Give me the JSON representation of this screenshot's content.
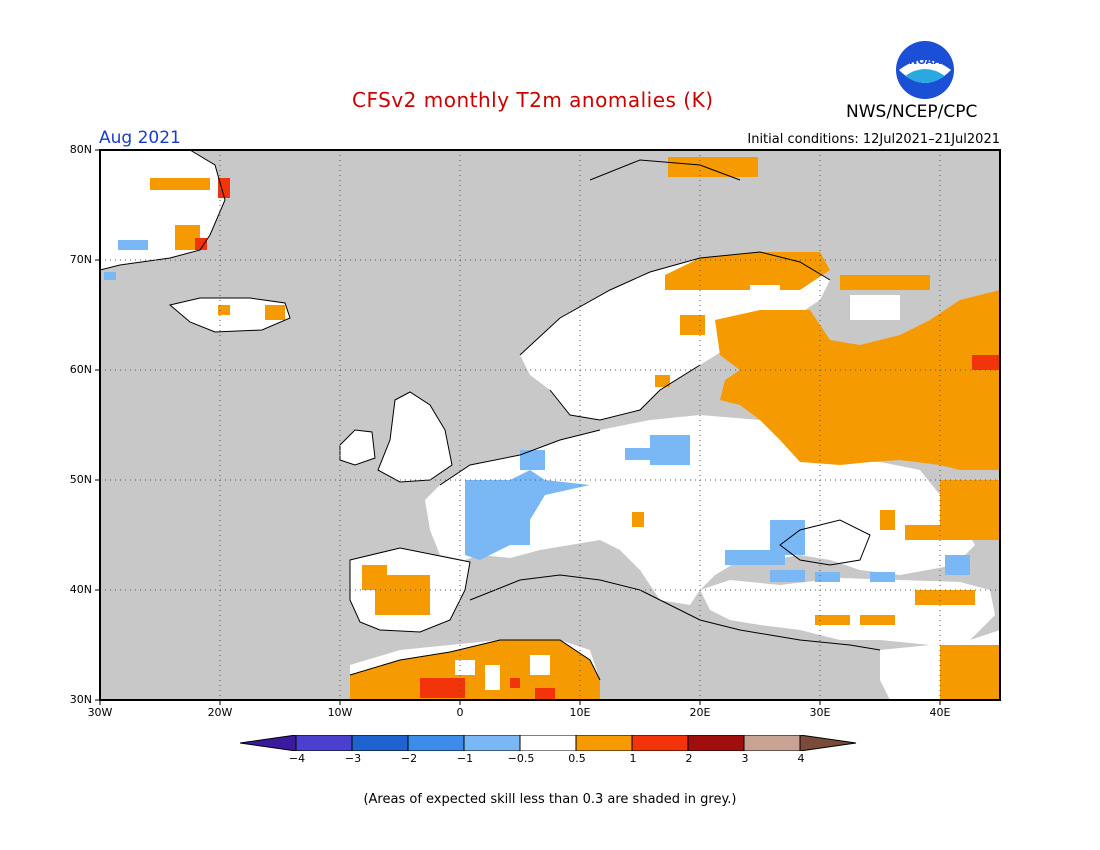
{
  "header": {
    "title": "CFSv2 monthly T2m anomalies (K)",
    "agency": "NWS/NCEP/CPC",
    "logo_text": "NOAA",
    "month": "Aug 2021",
    "initial_conditions": "Initial conditions: 12Jul2021–21Jul2021"
  },
  "map": {
    "lat_ticks": [
      "80N",
      "70N",
      "60N",
      "50N",
      "40N",
      "30N"
    ],
    "lon_ticks": [
      "30W",
      "20W",
      "10W",
      "0",
      "10E",
      "20E",
      "30E",
      "40E"
    ],
    "extent": {
      "lon": [
        -30,
        45
      ],
      "lat": [
        30,
        80
      ]
    },
    "grid": true
  },
  "colorbar": {
    "labels": [
      "−4",
      "−3",
      "−2",
      "−1",
      "−0.5",
      "0.5",
      "1",
      "2",
      "3",
      "4"
    ],
    "colors": [
      "#3b1a9e",
      "#4b3fd0",
      "#1e63cf",
      "#3d8de8",
      "#7ab8f5",
      "#ffffff",
      "#f59a00",
      "#f2340a",
      "#a10e0e",
      "#c9a393",
      "#7a4a3a"
    ]
  },
  "legend_note": "(Areas of expected skill less than 0.3 are shaded in grey.)",
  "colors": {
    "ocean_grey": "#c8c8c8",
    "land_white": "#ffffff",
    "warm": "#f59a00",
    "hot": "#f2340a",
    "cool": "#7ab8f5"
  }
}
